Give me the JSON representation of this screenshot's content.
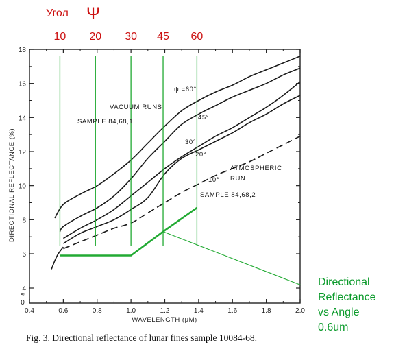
{
  "chart_data": {
    "type": "line",
    "xlabel": "WAVELENGTH (μM)",
    "ylabel": "DIRECTIONAL REFLECTANCE (%)",
    "xlim": [
      0.4,
      2.0
    ],
    "ylim": [
      4,
      18
    ],
    "x_ticks": [
      "0.4",
      "0.6",
      "0.8",
      "1.0",
      "1.2",
      "1.4",
      "1.6",
      "1.8",
      "2.0"
    ],
    "y_ticks": [
      "4",
      "6",
      "8",
      "10",
      "12",
      "14",
      "16",
      "18"
    ],
    "y_break_labels": [
      "0",
      "≈"
    ],
    "grid": false,
    "series": [
      {
        "name": "ψ =60°",
        "style": "solid",
        "x": [
          0.55,
          0.6,
          0.7,
          0.8,
          0.9,
          1.0,
          1.1,
          1.2,
          1.3,
          1.4,
          1.5,
          1.6,
          1.7,
          1.8,
          1.9,
          2.0
        ],
        "y": [
          8.1,
          8.9,
          9.5,
          10.0,
          10.7,
          11.5,
          12.5,
          13.5,
          14.4,
          15.0,
          15.5,
          15.9,
          16.4,
          16.8,
          17.2,
          17.6
        ]
      },
      {
        "name": "45°",
        "style": "solid",
        "x": [
          0.58,
          0.6,
          0.7,
          0.8,
          0.9,
          1.0,
          1.1,
          1.2,
          1.3,
          1.4,
          1.5,
          1.6,
          1.7,
          1.8,
          1.9,
          2.0
        ],
        "y": [
          7.3,
          7.6,
          8.2,
          8.7,
          9.4,
          10.4,
          11.6,
          12.6,
          13.6,
          14.2,
          14.7,
          15.2,
          15.6,
          16.0,
          16.5,
          16.9
        ]
      },
      {
        "name": "30°",
        "style": "solid",
        "x": [
          0.6,
          0.7,
          0.8,
          0.9,
          1.0,
          1.1,
          1.2,
          1.3,
          1.4,
          1.5,
          1.6,
          1.7,
          1.8,
          1.9,
          2.0
        ],
        "y": [
          6.9,
          7.5,
          8.0,
          8.6,
          9.4,
          10.2,
          11.0,
          11.7,
          12.3,
          12.9,
          13.4,
          14.0,
          14.6,
          15.3,
          16.1
        ]
      },
      {
        "name": "20°",
        "style": "solid",
        "x": [
          0.6,
          0.7,
          0.8,
          0.9,
          1.0,
          1.1,
          1.2,
          1.3,
          1.4,
          1.5,
          1.6,
          1.7,
          1.8,
          1.9,
          2.0
        ],
        "y": [
          6.6,
          7.2,
          7.6,
          8.0,
          8.6,
          9.3,
          10.7,
          11.6,
          12.1,
          12.6,
          13.1,
          13.7,
          14.2,
          14.8,
          15.3
        ]
      },
      {
        "name": "10°",
        "style": "dashed",
        "x": [
          0.6,
          0.7,
          0.8,
          0.9,
          1.0,
          1.1,
          1.2,
          1.3,
          1.4,
          1.5,
          1.6,
          1.7,
          1.8,
          1.9,
          2.0
        ],
        "y": [
          6.3,
          6.7,
          7.1,
          7.5,
          7.8,
          8.4,
          9.0,
          9.6,
          10.1,
          10.6,
          11.0,
          11.4,
          11.9,
          12.4,
          12.9
        ]
      }
    ],
    "base_curve": {
      "x": [
        0.53,
        0.55,
        0.57,
        0.6
      ],
      "y": [
        5.1,
        5.6,
        6.0,
        6.4
      ]
    },
    "overlay": {
      "series_name": "Directional Reflectance vs Angle 0.6um",
      "angle_labels": [
        "10",
        "20",
        "30",
        "45",
        "60"
      ],
      "guide_x": [
        0.58,
        0.79,
        1.0,
        1.19,
        1.39
      ],
      "points_x": [
        0.58,
        0.79,
        1.0,
        1.19,
        1.39
      ],
      "points_y": [
        5.9,
        5.9,
        5.9,
        7.3,
        8.7
      ]
    },
    "annotations": {
      "vacuum_runs": "VACUUM RUNS",
      "sample_1": "SAMPLE  84,68,1",
      "atmospheric": "ATMOSPHERIC",
      "run": "RUN",
      "sample_2": "SAMPLE  84,68,2"
    }
  },
  "header": {
    "ugol": "Угол",
    "psi": "Ψ"
  },
  "legend_note": {
    "line1": "Directional",
    "line2": "Reflectance",
    "line3": "vs Angle",
    "line4": "0.6um"
  },
  "caption": "Fig. 3.  Directional reflectance of lunar fines sample 10084-68.",
  "colors": {
    "curve": "#1a1a1a",
    "overlay_green": "#22aa33",
    "label_red": "#cc1111",
    "note_green": "#0a9a2a"
  }
}
